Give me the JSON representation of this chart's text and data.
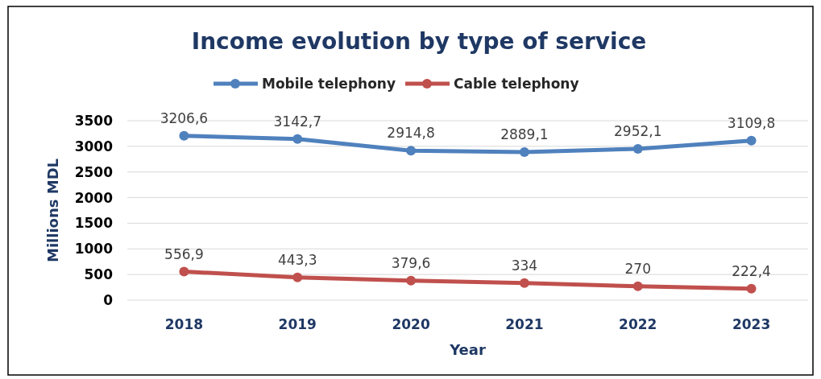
{
  "chart_data": {
    "type": "line",
    "title": "Income evolution by type of service",
    "xlabel": "Year",
    "ylabel": "Millions MDL",
    "categories": [
      "2018",
      "2019",
      "2020",
      "2021",
      "2022",
      "2023"
    ],
    "series": [
      {
        "name": "Mobile telephony",
        "color": "#4f81bd",
        "values": [
          3206.6,
          3142.7,
          2914.8,
          2889.1,
          2952.1,
          3109.8
        ],
        "value_labels": [
          "3206,6",
          "3142,7",
          "2914,8",
          "2889,1",
          "2952,1",
          "3109,8"
        ]
      },
      {
        "name": "Cable telephony",
        "color": "#c0504d",
        "values": [
          556.9,
          443.3,
          379.6,
          334,
          270,
          222.4
        ],
        "value_labels": [
          "556,9",
          "443,3",
          "379,6",
          "334",
          "270",
          "222,4"
        ]
      }
    ],
    "ylim": [
      0,
      3500
    ],
    "yticks": [
      0,
      500,
      1000,
      1500,
      2000,
      2500,
      3000,
      3500
    ],
    "grid": "y",
    "legend": "top",
    "marker": "circle",
    "line_style": "solid"
  }
}
